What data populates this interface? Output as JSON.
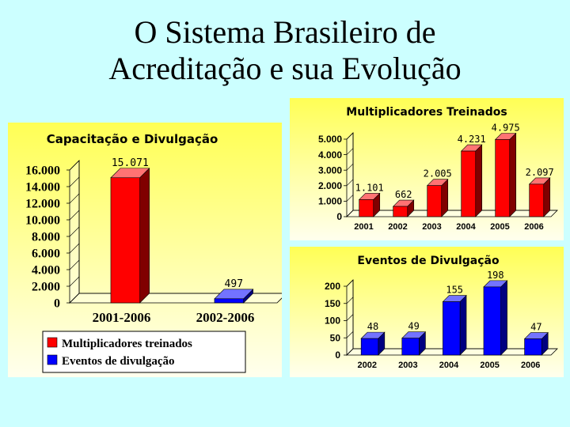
{
  "slide": {
    "title_line1": "O Sistema Brasileiro de",
    "title_line2": "Acreditação e sua Evolução"
  },
  "colors": {
    "red": "#ff0000",
    "blue": "#0000ff",
    "panel_bg_top": "#ffff55",
    "panel_bg_bottom": "#ffffee"
  },
  "chart_data": [
    {
      "type": "bar",
      "title": "Capacitação e Divulgação",
      "categories": [
        "2001-2006",
        "2002-2006"
      ],
      "series": [
        {
          "name": "Multiplicadores treinados",
          "color": "#ff0000",
          "values": [
            15071,
            null
          ]
        },
        {
          "name": "Eventos de divulgação",
          "color": "#0000ff",
          "values": [
            null,
            497
          ]
        }
      ],
      "value_labels": [
        "15.071",
        "497"
      ],
      "yticks": [
        "0",
        "2.000",
        "4.000",
        "6.000",
        "8.000",
        "10.000",
        "12.000",
        "14.000",
        "16.000"
      ],
      "ylim": [
        0,
        16000
      ],
      "legend": "bottom",
      "grid": false
    },
    {
      "type": "bar",
      "title": "Multiplicadores Treinados",
      "categories": [
        "2001",
        "2002",
        "2003",
        "2004",
        "2005",
        "2006"
      ],
      "values": [
        1101,
        662,
        2005,
        4231,
        4975,
        2097
      ],
      "value_labels": [
        "1.101",
        "662",
        "2.005",
        "4.231",
        "4.975",
        "2.097"
      ],
      "yticks": [
        "0",
        "1.000",
        "2.000",
        "3.000",
        "4.000",
        "5.000"
      ],
      "ylim": [
        0,
        5000
      ],
      "color": "#ff0000",
      "grid": false
    },
    {
      "type": "bar",
      "title": "Eventos de Divulgação",
      "categories": [
        "2002",
        "2003",
        "2004",
        "2005",
        "2006"
      ],
      "values": [
        48,
        49,
        155,
        198,
        47
      ],
      "value_labels": [
        "48",
        "49",
        "155",
        "198",
        "47"
      ],
      "yticks": [
        "0",
        "50",
        "100",
        "150",
        "200"
      ],
      "ylim": [
        0,
        200
      ],
      "color": "#0000ff",
      "grid": false
    }
  ]
}
